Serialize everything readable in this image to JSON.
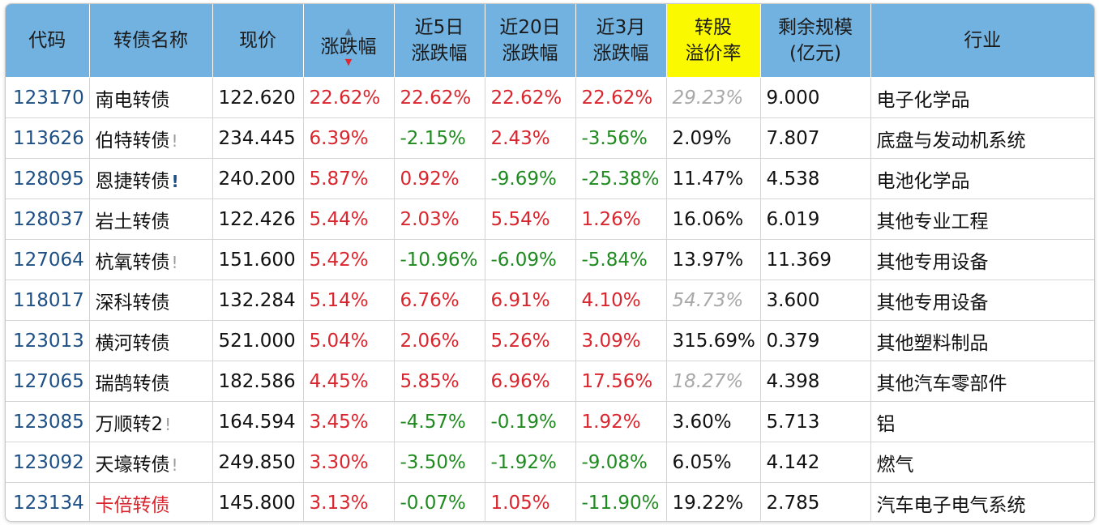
{
  "table": {
    "headers": {
      "code": "代码",
      "name": "转债名称",
      "price": "现价",
      "change": "涨跌幅",
      "d5_line1": "近5日",
      "d5_line2": "涨跌幅",
      "d20_line1": "近20日",
      "d20_line2": "涨跌幅",
      "m3_line1": "近3月",
      "m3_line2": "涨跌幅",
      "premium_line1": "转股",
      "premium_line2": "溢价率",
      "scale_line1": "剩余规模",
      "scale_line2": "(亿元)",
      "industry": "行业"
    },
    "sort": {
      "up_icon": "▲",
      "down_icon": "▼"
    },
    "rows": [
      {
        "code": "123170",
        "name": "南电转债",
        "name_color": "normal",
        "warning": "",
        "warning_style": "",
        "price": "122.620",
        "change": "22.62%",
        "change_dir": "up",
        "d5": "22.62%",
        "d5_dir": "up",
        "d20": "22.62%",
        "d20_dir": "up",
        "m3": "22.62%",
        "m3_dir": "up",
        "premium": "29.23%",
        "premium_muted": true,
        "scale": "9.000",
        "industry": "电子化学品"
      },
      {
        "code": "113626",
        "name": "伯特转债",
        "name_color": "normal",
        "warning": "!",
        "warning_style": "gray",
        "price": "234.445",
        "change": "6.39%",
        "change_dir": "up",
        "d5": "-2.15%",
        "d5_dir": "down",
        "d20": "2.43%",
        "d20_dir": "up",
        "m3": "-3.56%",
        "m3_dir": "down",
        "premium": "2.09%",
        "premium_muted": false,
        "scale": "7.807",
        "industry": "底盘与发动机系统"
      },
      {
        "code": "128095",
        "name": "恩捷转债",
        "name_color": "normal",
        "warning": "!",
        "warning_style": "blue",
        "price": "240.200",
        "change": "5.87%",
        "change_dir": "up",
        "d5": "0.92%",
        "d5_dir": "up",
        "d20": "-9.69%",
        "d20_dir": "down",
        "m3": "-25.38%",
        "m3_dir": "down",
        "premium": "11.47%",
        "premium_muted": false,
        "scale": "4.538",
        "industry": "电池化学品"
      },
      {
        "code": "128037",
        "name": "岩土转债",
        "name_color": "normal",
        "warning": "",
        "warning_style": "",
        "price": "122.426",
        "change": "5.44%",
        "change_dir": "up",
        "d5": "2.03%",
        "d5_dir": "up",
        "d20": "5.54%",
        "d20_dir": "up",
        "m3": "1.26%",
        "m3_dir": "up",
        "premium": "16.06%",
        "premium_muted": false,
        "scale": "6.019",
        "industry": "其他专业工程"
      },
      {
        "code": "127064",
        "name": "杭氧转债",
        "name_color": "normal",
        "warning": "!",
        "warning_style": "gray",
        "price": "151.600",
        "change": "5.42%",
        "change_dir": "up",
        "d5": "-10.96%",
        "d5_dir": "down",
        "d20": "-6.09%",
        "d20_dir": "down",
        "m3": "-5.84%",
        "m3_dir": "down",
        "premium": "13.97%",
        "premium_muted": false,
        "scale": "11.369",
        "industry": "其他专用设备"
      },
      {
        "code": "118017",
        "name": "深科转债",
        "name_color": "normal",
        "warning": "",
        "warning_style": "",
        "price": "132.284",
        "change": "5.14%",
        "change_dir": "up",
        "d5": "6.76%",
        "d5_dir": "up",
        "d20": "6.91%",
        "d20_dir": "up",
        "m3": "4.10%",
        "m3_dir": "up",
        "premium": "54.73%",
        "premium_muted": true,
        "scale": "3.600",
        "industry": "其他专用设备"
      },
      {
        "code": "123013",
        "name": "横河转债",
        "name_color": "normal",
        "warning": "",
        "warning_style": "",
        "price": "521.000",
        "change": "5.04%",
        "change_dir": "up",
        "d5": "2.06%",
        "d5_dir": "up",
        "d20": "5.26%",
        "d20_dir": "up",
        "m3": "3.09%",
        "m3_dir": "up",
        "premium": "315.69%",
        "premium_muted": false,
        "scale": "0.379",
        "industry": "其他塑料制品"
      },
      {
        "code": "127065",
        "name": "瑞鹄转债",
        "name_color": "normal",
        "warning": "",
        "warning_style": "",
        "price": "182.586",
        "change": "4.45%",
        "change_dir": "up",
        "d5": "5.85%",
        "d5_dir": "up",
        "d20": "6.96%",
        "d20_dir": "up",
        "m3": "17.56%",
        "m3_dir": "up",
        "premium": "18.27%",
        "premium_muted": true,
        "scale": "4.398",
        "industry": "其他汽车零部件"
      },
      {
        "code": "123085",
        "name": "万顺转2",
        "name_color": "normal",
        "warning": "!",
        "warning_style": "gray",
        "price": "164.594",
        "change": "3.45%",
        "change_dir": "up",
        "d5": "-4.57%",
        "d5_dir": "down",
        "d20": "-0.19%",
        "d20_dir": "down",
        "m3": "1.92%",
        "m3_dir": "up",
        "premium": "3.60%",
        "premium_muted": false,
        "scale": "5.713",
        "industry": "铝"
      },
      {
        "code": "123092",
        "name": "天壕转债",
        "name_color": "normal",
        "warning": "!",
        "warning_style": "gray",
        "price": "249.850",
        "change": "3.30%",
        "change_dir": "up",
        "d5": "-3.50%",
        "d5_dir": "down",
        "d20": "-1.92%",
        "d20_dir": "down",
        "m3": "-9.08%",
        "m3_dir": "down",
        "premium": "6.05%",
        "premium_muted": false,
        "scale": "4.142",
        "industry": "燃气"
      },
      {
        "code": "123134",
        "name": "卡倍转债",
        "name_color": "red",
        "warning": "",
        "warning_style": "",
        "price": "145.800",
        "change": "3.13%",
        "change_dir": "up",
        "d5": "-0.07%",
        "d5_dir": "down",
        "d20": "1.05%",
        "d20_dir": "up",
        "m3": "-11.90%",
        "m3_dir": "down",
        "premium": "19.22%",
        "premium_muted": false,
        "scale": "2.785",
        "industry": "汽车电子电气系统"
      }
    ]
  },
  "colors": {
    "header_bg": "#72b2e1",
    "highlight_bg": "#fbf900",
    "up": "#d9262e",
    "down": "#1f8a1f",
    "code": "#1d4f85",
    "muted": "#a8a8a8"
  }
}
